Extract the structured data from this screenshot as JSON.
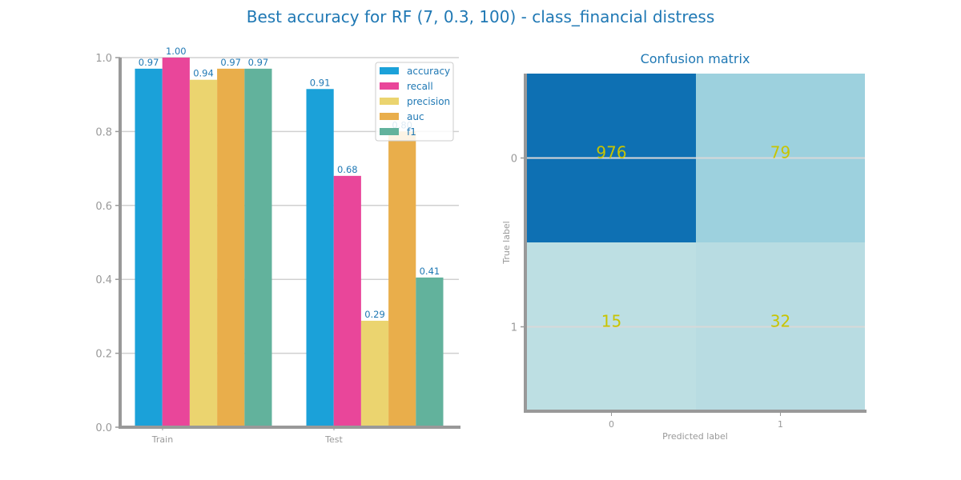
{
  "figure": {
    "title": "Best accuracy for RF (7, 0.3, 100) - class_financial distress"
  },
  "chart_data": [
    {
      "type": "bar",
      "categories": [
        "Train",
        "Test"
      ],
      "series": [
        {
          "name": "accuracy",
          "color": "#1ba1d9",
          "values": [
            0.97,
            0.915
          ]
        },
        {
          "name": "recall",
          "color": "#e9469a",
          "values": [
            1.0,
            0.68
          ]
        },
        {
          "name": "precision",
          "color": "#ebd46f",
          "values": [
            0.94,
            0.288
          ]
        },
        {
          "name": "auc",
          "color": "#e9ae4b",
          "values": [
            0.97,
            0.8
          ]
        },
        {
          "name": "f1",
          "color": "#62b29c",
          "values": [
            0.97,
            0.405
          ]
        }
      ],
      "data_labels": [
        [
          "0.97",
          "1.00",
          "0.94",
          "0.97",
          "0.97"
        ],
        [
          "0.91",
          "0.68",
          "0.29",
          "0.80",
          "0.41"
        ]
      ],
      "ylim": [
        0,
        1.0
      ],
      "yticks": [
        "0.0",
        "0.2",
        "0.4",
        "0.6",
        "0.8",
        "1.0"
      ],
      "ytick_values": [
        0,
        0.2,
        0.4,
        0.6,
        0.8,
        1.0
      ],
      "xlabel": "",
      "ylabel": "",
      "grid": true,
      "legend": "top-right"
    },
    {
      "type": "heatmap",
      "title": "Confusion matrix",
      "xlabel": "Predicted label",
      "ylabel": "True label",
      "x_categories": [
        "0",
        "1"
      ],
      "y_categories": [
        "0",
        "1"
      ],
      "values": [
        [
          976,
          79
        ],
        [
          15,
          32
        ]
      ],
      "cell_colors": [
        [
          "#0e70b3",
          "#9dd1de"
        ],
        [
          "#bddfe3",
          "#b8dce2"
        ]
      ],
      "text_color": "#c8c400"
    }
  ]
}
